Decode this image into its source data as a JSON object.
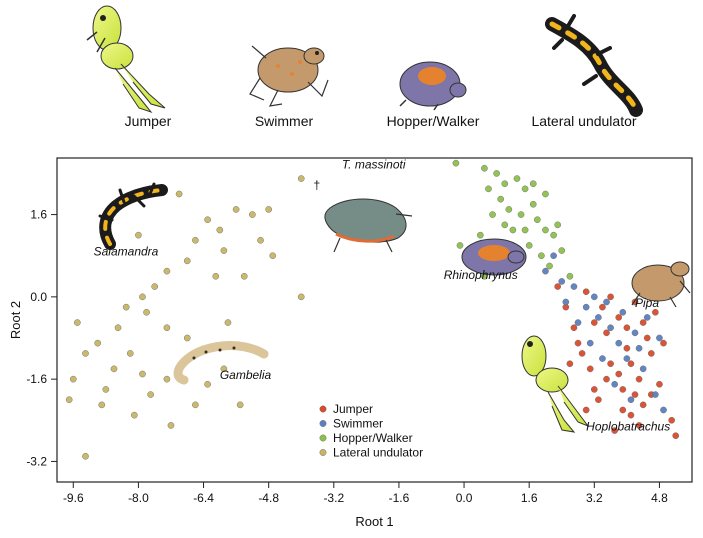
{
  "top_labels": [
    "Jumper",
    "Swimmer",
    "Hopper/Walker",
    "Lateral undulator"
  ],
  "chart_data": {
    "type": "scatter",
    "title": "",
    "xlabel": "Root 1",
    "ylabel": "Root 2",
    "xlim": [
      -10.0,
      5.6
    ],
    "ylim": [
      -3.6,
      2.7
    ],
    "xticks": [
      "-9.6",
      "-8.0",
      "-6.4",
      "-4.8",
      "-3.2",
      "-1.6",
      "0.0",
      "1.6",
      "3.2",
      "4.8"
    ],
    "yticks": [
      "1.6",
      "0.0",
      "-1.6",
      "-3.2"
    ],
    "xtick_values": [
      -9.6,
      -8.0,
      -6.4,
      -4.8,
      -3.2,
      -1.6,
      0.0,
      1.6,
      3.2,
      4.8
    ],
    "ytick_values": [
      1.6,
      0.0,
      -1.6,
      -3.2
    ],
    "grid": false,
    "legend_position": "bottom-center",
    "series": [
      {
        "name": "Jumper",
        "color": "#d94b2b",
        "points": [
          [
            2.5,
            -0.2
          ],
          [
            2.8,
            -0.9
          ],
          [
            3.0,
            0.1
          ],
          [
            3.2,
            -0.5
          ],
          [
            3.5,
            -0.7
          ],
          [
            3.6,
            -1.3
          ],
          [
            3.8,
            -0.4
          ],
          [
            3.9,
            -1.8
          ],
          [
            4.0,
            -1.0
          ],
          [
            4.1,
            -2.3
          ],
          [
            4.2,
            -0.1
          ],
          [
            4.3,
            -1.6
          ],
          [
            4.4,
            -2.1
          ],
          [
            4.5,
            -0.8
          ],
          [
            4.6,
            -1.9
          ],
          [
            4.7,
            -0.3
          ],
          [
            3.1,
            -1.4
          ],
          [
            3.3,
            -2.0
          ],
          [
            3.7,
            -2.6
          ],
          [
            3.4,
            -0.2
          ],
          [
            2.9,
            -1.1
          ],
          [
            4.8,
            -1.7
          ],
          [
            5.1,
            -2.4
          ],
          [
            5.2,
            -2.7
          ],
          [
            4.9,
            -0.9
          ],
          [
            3.6,
            0.0
          ],
          [
            3.9,
            -2.2
          ],
          [
            4.1,
            -1.3
          ],
          [
            4.4,
            -0.5
          ],
          [
            3.2,
            -1.8
          ],
          [
            2.7,
            -0.6
          ],
          [
            3.8,
            -1.5
          ],
          [
            4.0,
            -0.6
          ],
          [
            4.3,
            -2.5
          ],
          [
            4.6,
            -1.1
          ],
          [
            3.5,
            -1.6
          ],
          [
            2.3,
            0.2
          ],
          [
            2.6,
            -1.3
          ],
          [
            4.2,
            -1.9
          ],
          [
            3.0,
            -2.2
          ]
        ]
      },
      {
        "name": "Swimmer",
        "color": "#5b7fbf",
        "points": [
          [
            2.0,
            0.5
          ],
          [
            2.4,
            0.3
          ],
          [
            2.7,
            0.2
          ],
          [
            3.0,
            -0.2
          ],
          [
            3.3,
            -0.4
          ],
          [
            3.6,
            -0.6
          ],
          [
            3.8,
            -0.9
          ],
          [
            4.0,
            -1.2
          ],
          [
            4.2,
            -0.7
          ],
          [
            4.4,
            -1.4
          ],
          [
            4.7,
            -1.9
          ],
          [
            4.5,
            -0.4
          ],
          [
            3.1,
            -0.9
          ],
          [
            3.4,
            -1.2
          ],
          [
            2.8,
            -0.5
          ],
          [
            3.9,
            -0.3
          ],
          [
            4.3,
            -1.0
          ],
          [
            4.8,
            -0.8
          ],
          [
            2.5,
            -0.1
          ],
          [
            3.7,
            -1.7
          ],
          [
            4.1,
            -2.0
          ],
          [
            4.9,
            -2.2
          ],
          [
            3.2,
            0.0
          ],
          [
            2.2,
            0.8
          ],
          [
            3.5,
            -0.1
          ]
        ]
      },
      {
        "name": "Hopper/Walker",
        "color": "#8cc04b",
        "points": [
          [
            -0.2,
            2.6
          ],
          [
            0.5,
            2.5
          ],
          [
            0.8,
            2.4
          ],
          [
            1.0,
            2.2
          ],
          [
            1.3,
            2.3
          ],
          [
            1.5,
            2.1
          ],
          [
            1.7,
            2.2
          ],
          [
            0.6,
            2.1
          ],
          [
            0.9,
            1.9
          ],
          [
            1.1,
            1.7
          ],
          [
            1.4,
            1.6
          ],
          [
            1.8,
            1.5
          ],
          [
            2.0,
            1.3
          ],
          [
            2.2,
            1.2
          ],
          [
            2.4,
            0.9
          ],
          [
            0.7,
            1.6
          ],
          [
            1.2,
            1.3
          ],
          [
            1.6,
            1.0
          ],
          [
            1.9,
            0.8
          ],
          [
            2.1,
            0.6
          ],
          [
            2.6,
            0.4
          ],
          [
            0.4,
            1.2
          ],
          [
            0.8,
            0.9
          ],
          [
            1.3,
            0.7
          ],
          [
            0.2,
            0.6
          ],
          [
            0.5,
            0.4
          ],
          [
            -0.1,
            1.0
          ],
          [
            1.0,
            1.4
          ],
          [
            1.5,
            1.3
          ],
          [
            2.3,
            1.4
          ],
          [
            1.7,
            1.8
          ],
          [
            2.0,
            2.0
          ]
        ]
      },
      {
        "name": "Lateral undulator",
        "color": "#c7b565",
        "points": [
          [
            -4.0,
            2.3
          ],
          [
            -4.8,
            1.7
          ],
          [
            -5.2,
            1.6
          ],
          [
            -6.0,
            1.3
          ],
          [
            -6.3,
            1.5
          ],
          [
            -5.9,
            0.9
          ],
          [
            -5.0,
            1.1
          ],
          [
            -4.7,
            0.8
          ],
          [
            -4.0,
            0.0
          ],
          [
            -6.8,
            0.7
          ],
          [
            -7.3,
            0.5
          ],
          [
            -7.6,
            0.2
          ],
          [
            -7.9,
            0.0
          ],
          [
            -7.8,
            -0.3
          ],
          [
            -7.3,
            -0.6
          ],
          [
            -6.8,
            -0.8
          ],
          [
            -8.3,
            -0.2
          ],
          [
            -8.5,
            -0.6
          ],
          [
            -8.2,
            -1.1
          ],
          [
            -8.6,
            -1.4
          ],
          [
            -8.8,
            -1.8
          ],
          [
            -9.3,
            -1.1
          ],
          [
            -9.5,
            -0.5
          ],
          [
            -9.6,
            -1.6
          ],
          [
            -9.7,
            -2.0
          ],
          [
            -8.9,
            -2.1
          ],
          [
            -8.1,
            -2.3
          ],
          [
            -7.7,
            -1.9
          ],
          [
            -7.3,
            -1.6
          ],
          [
            -6.9,
            -1.3
          ],
          [
            -6.3,
            -1.7
          ],
          [
            -5.9,
            -1.4
          ],
          [
            -5.5,
            -2.1
          ],
          [
            -6.6,
            -2.1
          ],
          [
            -7.2,
            -2.5
          ],
          [
            -9.3,
            -3.1
          ],
          [
            -7.9,
            -1.5
          ],
          [
            -6.1,
            0.4
          ],
          [
            -5.4,
            0.4
          ],
          [
            -6.6,
            1.1
          ],
          [
            -5.6,
            1.7
          ],
          [
            -8.0,
            1.2
          ],
          [
            -7.0,
            2.0
          ],
          [
            -9.0,
            -0.9
          ],
          [
            -5.8,
            -0.5
          ]
        ]
      }
    ],
    "annotations": [
      {
        "text": "T. massinoti",
        "x": -3.0,
        "y": 2.5
      },
      {
        "text": "†",
        "x": -3.7,
        "y": 2.1
      },
      {
        "text": "Salamandra",
        "x": -9.1,
        "y": 0.8
      },
      {
        "text": "Rhinophrynus",
        "x": -0.5,
        "y": 0.35
      },
      {
        "text": "Pipa",
        "x": 4.2,
        "y": -0.2
      },
      {
        "text": "Gambelia",
        "x": -6.0,
        "y": -1.6
      },
      {
        "text": "Hoplobatrachus",
        "x": 3.0,
        "y": -2.6
      }
    ],
    "legend": [
      "Jumper",
      "Swimmer",
      "Hopper/Walker",
      "Lateral undulator"
    ]
  }
}
